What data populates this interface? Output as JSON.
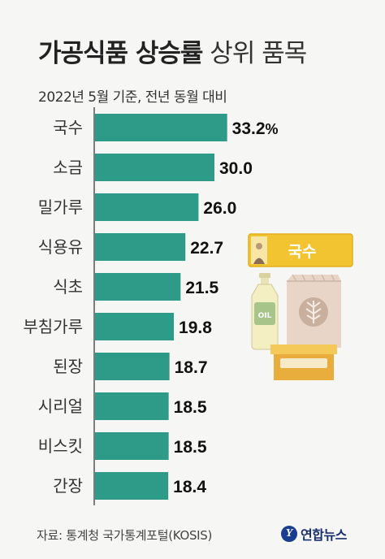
{
  "header": {
    "title_bold": "가공식품 상승률",
    "title_light": "상위 품목",
    "subtitle": "2022년 5월 기준, 전년 동월 대비"
  },
  "chart_data": {
    "type": "bar",
    "orientation": "horizontal",
    "title": "가공식품 상승률 상위 품목",
    "subtitle": "2022년 5월 기준, 전년 동월 대비",
    "categories": [
      "국수",
      "소금",
      "밀가루",
      "식용유",
      "식초",
      "부침가루",
      "된장",
      "시리얼",
      "비스킷",
      "간장"
    ],
    "values": [
      33.2,
      30.0,
      26.0,
      22.7,
      21.5,
      19.8,
      18.7,
      18.5,
      18.5,
      18.4
    ],
    "value_labels": [
      "33.2",
      "30.0",
      "26.0",
      "22.7",
      "21.5",
      "19.8",
      "18.7",
      "18.5",
      "18.5",
      "18.4"
    ],
    "first_value_suffix": "%",
    "unit": "%",
    "bar_color": "#2e9a88",
    "grid": false,
    "illustration": {
      "package_label": "국수",
      "bottle_label": "OIL"
    }
  },
  "footer": {
    "source": "자료: 통계청 국가통계포털(KOSIS)",
    "logo_mark": "Y",
    "logo_text": "연합뉴스"
  },
  "colors": {
    "background": "#f6f6f4",
    "bar": "#2e9a88",
    "axis": "#555555",
    "brand": "#1a3d8f"
  }
}
